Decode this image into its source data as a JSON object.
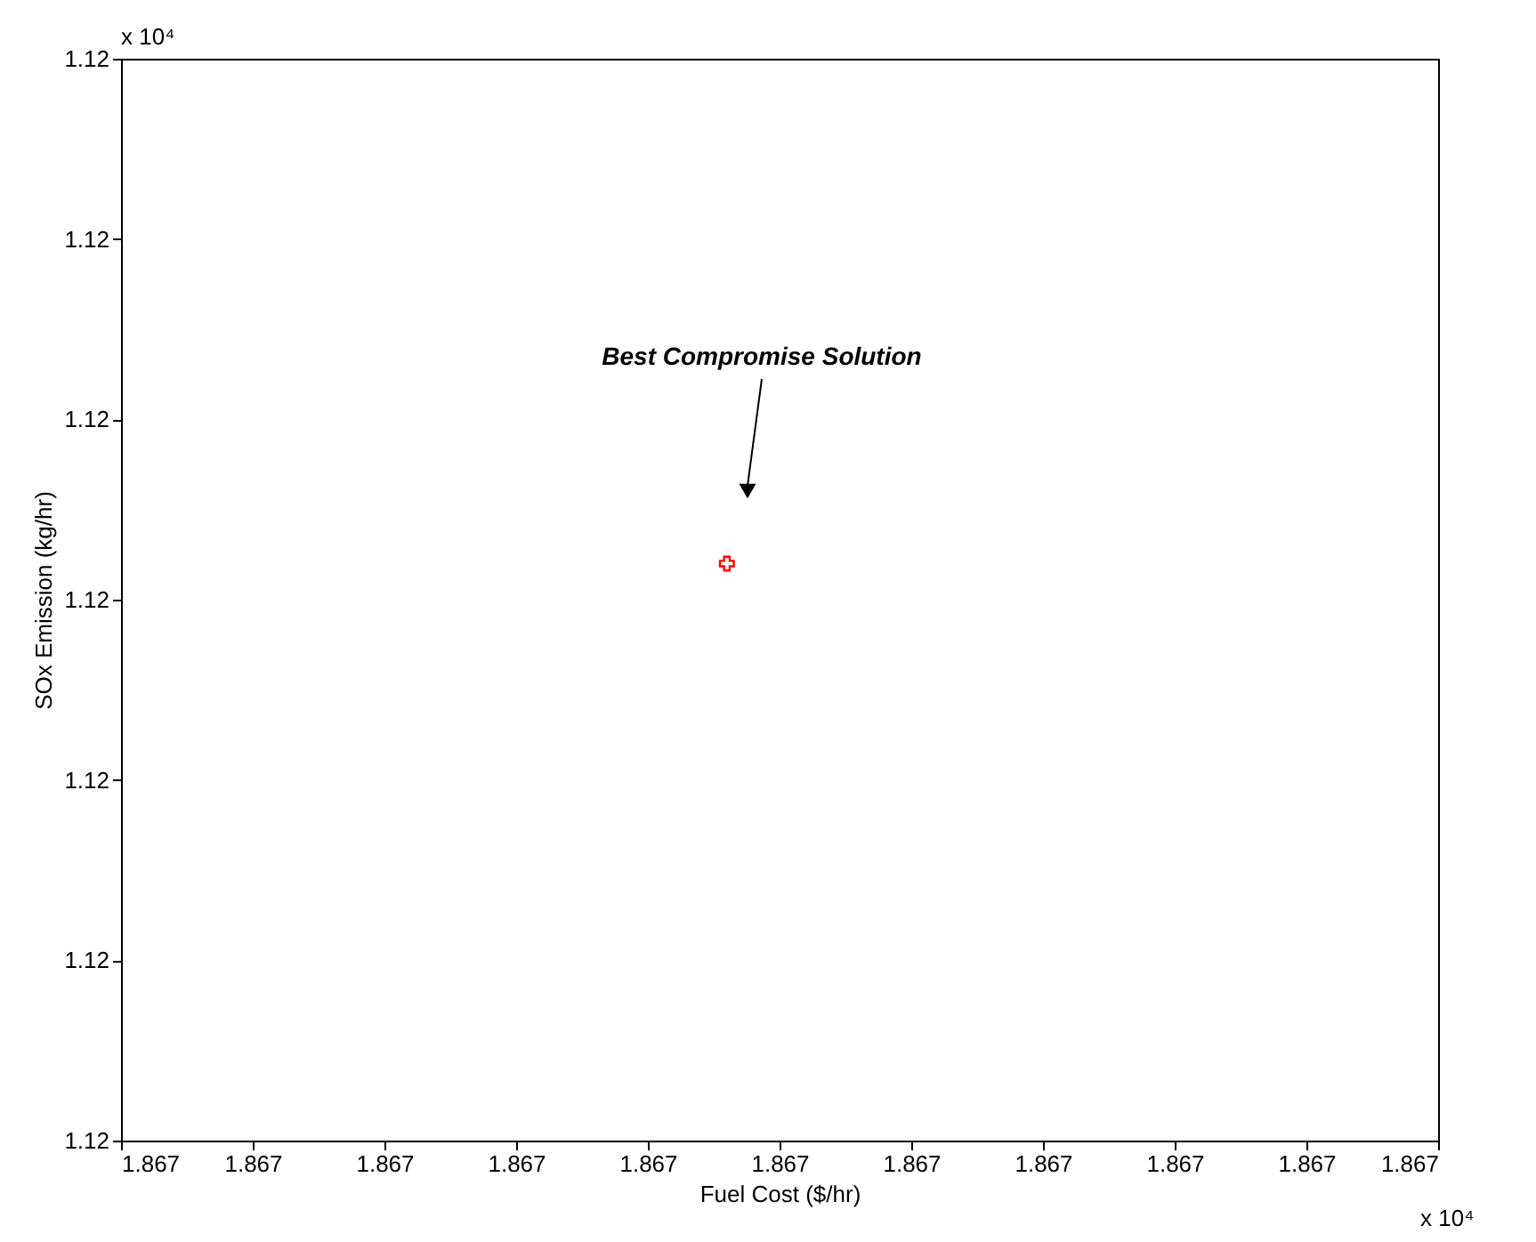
{
  "chart_data": {
    "type": "scatter",
    "xlabel": "Fuel Cost ($/hr)",
    "ylabel": "SOx Emission (kg/hr)",
    "series": [
      {
        "color": "#ff0000",
        "x": [
          1.867046
        ],
        "values": [
          1.120032
        ],
        "marker": "cross"
      }
    ],
    "xlim": [
      1.867,
      1.8671
    ],
    "xticks": [
      {
        "value": 1.867,
        "label": "1.867"
      },
      {
        "value": 1.86701,
        "label": "1.867"
      },
      {
        "value": 1.86702,
        "label": "1.867"
      },
      {
        "value": 1.86703,
        "label": "1.867"
      },
      {
        "value": 1.86704,
        "label": "1.867"
      },
      {
        "value": 1.86705,
        "label": "1.867"
      },
      {
        "value": 1.86706,
        "label": "1.867"
      },
      {
        "value": 1.86707,
        "label": "1.867"
      },
      {
        "value": 1.86708,
        "label": "1.867"
      },
      {
        "value": 1.86709,
        "label": "1.867"
      },
      {
        "value": 1.8671,
        "label": "1.867"
      }
    ],
    "ylim": [
      1.12,
      1.12006
    ],
    "yticks": [
      {
        "value": 1.12,
        "label": "1.12"
      },
      {
        "value": 1.12001,
        "label": "1.12"
      },
      {
        "value": 1.12002,
        "label": "1.12"
      },
      {
        "value": 1.12003,
        "label": "1.12"
      },
      {
        "value": 1.12004,
        "label": "1.12"
      },
      {
        "value": 1.12005,
        "label": "1.12"
      },
      {
        "value": 1.12006,
        "label": "1.12"
      }
    ],
    "grid": false,
    "annotations": [
      "Best Compromise Solution",
      "x 10⁴",
      "x 10⁴"
    ]
  }
}
